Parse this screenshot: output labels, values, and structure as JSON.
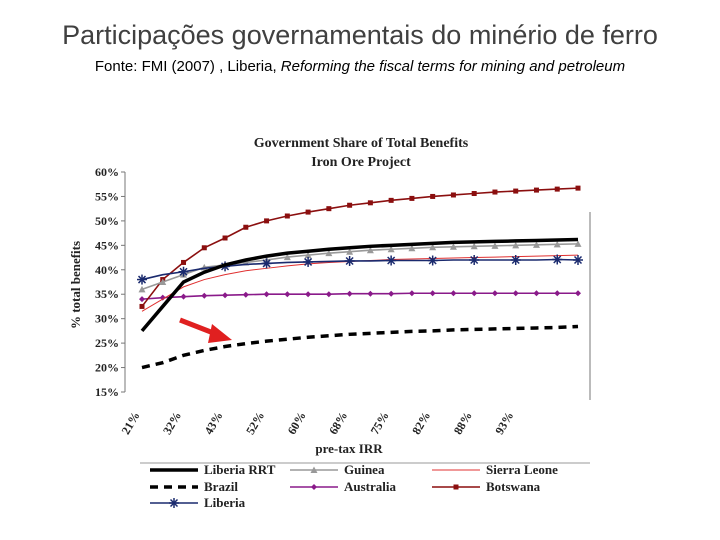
{
  "slide": {
    "title": "Participações governamentais do minério de ferro",
    "source_prefix": "Fonte: FMI (2007) , Liberia, ",
    "source_italic": "Reforming the fiscal terms for mining and petroleum"
  },
  "chart_data": {
    "type": "line",
    "title": "Government Share of Total Benefits",
    "subtitle": "Iron Ore Project",
    "xlabel": "pre-tax IRR",
    "ylabel": "% total benefits",
    "ylim": [
      15,
      60
    ],
    "y_ticks": [
      "15%",
      "20%",
      "25%",
      "30%",
      "35%",
      "40%",
      "45%",
      "50%",
      "55%",
      "60%"
    ],
    "x_tick_labels": [
      "21%",
      "32%",
      "43%",
      "52%",
      "60%",
      "68%",
      "75%",
      "82%",
      "88%",
      "93%"
    ],
    "grid": false,
    "legend_position": "bottom",
    "series": [
      {
        "name": "Liberia RRT",
        "color": "#000000",
        "style": "solid-thick",
        "marker": "none",
        "values": [
          27.5,
          32.5,
          37.5,
          39.5,
          41.0,
          42.0,
          42.8,
          43.4,
          43.8,
          44.2,
          44.5,
          44.8,
          45.0,
          45.2,
          45.4,
          45.6,
          45.7,
          45.8,
          45.9,
          46.0,
          46.1,
          46.2
        ]
      },
      {
        "name": "Guinea",
        "color": "#999999",
        "style": "solid",
        "marker": "triangle",
        "values": [
          36.0,
          37.5,
          39.0,
          40.5,
          41.0,
          41.5,
          42.0,
          42.6,
          43.0,
          43.4,
          43.7,
          44.0,
          44.2,
          44.4,
          44.6,
          44.7,
          44.8,
          44.9,
          45.0,
          45.1,
          45.2,
          45.3
        ]
      },
      {
        "name": "Sierra Leone",
        "color": "#e03030",
        "style": "thin",
        "marker": "none",
        "values": [
          31.5,
          34.0,
          36.5,
          38.0,
          39.0,
          39.8,
          40.3,
          40.8,
          41.2,
          41.5,
          41.7,
          41.9,
          42.1,
          42.2,
          42.3,
          42.4,
          42.5,
          42.6,
          42.7,
          42.8,
          42.9,
          43.0
        ]
      },
      {
        "name": "Brazil",
        "color": "#000000",
        "style": "dashed",
        "marker": "none",
        "values": [
          20.0,
          21.0,
          22.5,
          23.5,
          24.3,
          24.9,
          25.4,
          25.8,
          26.2,
          26.5,
          26.8,
          27.0,
          27.2,
          27.4,
          27.5,
          27.7,
          27.8,
          27.9,
          28.0,
          28.1,
          28.2,
          28.4
        ]
      },
      {
        "name": "Australia",
        "color": "#8a1a8a",
        "style": "solid",
        "marker": "diamond",
        "values": [
          34.0,
          34.3,
          34.5,
          34.7,
          34.8,
          34.9,
          35.0,
          35.0,
          35.0,
          35.0,
          35.1,
          35.1,
          35.1,
          35.2,
          35.2,
          35.2,
          35.2,
          35.2,
          35.2,
          35.2,
          35.2,
          35.2
        ]
      },
      {
        "name": "Botswana",
        "color": "#8b0f0f",
        "style": "solid",
        "marker": "square",
        "values": [
          32.5,
          38.0,
          41.5,
          44.5,
          46.5,
          48.7,
          50.0,
          51.0,
          51.8,
          52.5,
          53.2,
          53.7,
          54.2,
          54.6,
          55.0,
          55.3,
          55.6,
          55.9,
          56.1,
          56.3,
          56.5,
          56.7
        ]
      },
      {
        "name": "Liberia",
        "color": "#1a2a6e",
        "style": "solid",
        "marker": "star",
        "values": [
          38.0,
          39.0,
          39.6,
          40.3,
          40.7,
          41.1,
          41.3,
          41.5,
          41.6,
          41.7,
          41.8,
          41.8,
          41.9,
          41.9,
          41.9,
          42.0,
          42.0,
          42.0,
          42.0,
          42.0,
          42.1,
          42.0
        ]
      }
    ],
    "annotation": {
      "type": "arrow",
      "color": "#e02020",
      "points_to_series": "Brazil"
    }
  }
}
